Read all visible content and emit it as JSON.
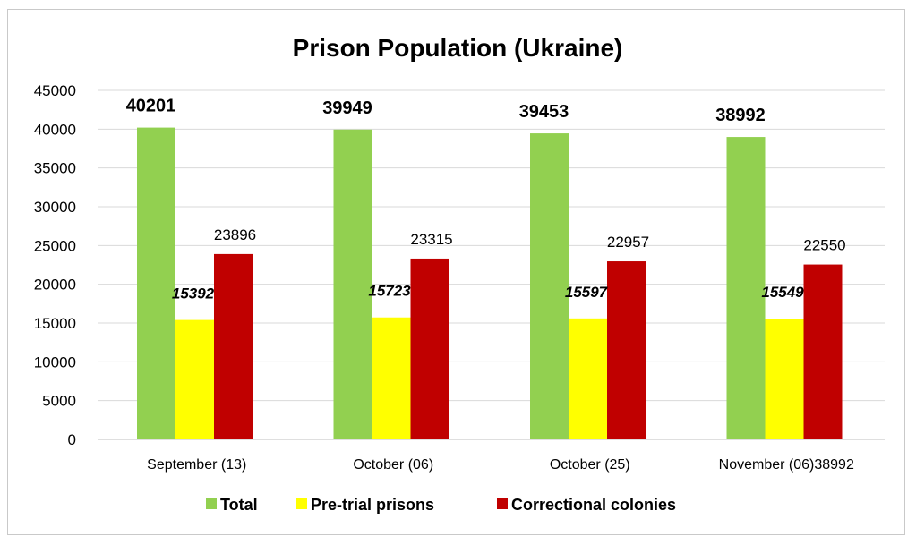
{
  "chart_data": {
    "type": "bar",
    "title": "Prison Population (Ukraine)",
    "categories": [
      "September (13)",
      "October (06)",
      "October  (25)",
      "November (06)38992"
    ],
    "series": [
      {
        "name": "Total",
        "color": "#92d050",
        "values": [
          40201,
          39949,
          39453,
          38992
        ]
      },
      {
        "name": "Pre-trial prisons",
        "color": "#ffff00",
        "values": [
          15392,
          15723,
          15597,
          15549
        ]
      },
      {
        "name": "Correctional colonies",
        "color": "#c00000",
        "values": [
          23896,
          23315,
          22957,
          22550
        ]
      }
    ],
    "ylim": [
      0,
      45000
    ],
    "yticks": [
      "0",
      "5000",
      "10000",
      "15000",
      "20000",
      "25000",
      "30000",
      "35000",
      "40000",
      "45000"
    ],
    "grid": true,
    "legend": "bottom"
  }
}
